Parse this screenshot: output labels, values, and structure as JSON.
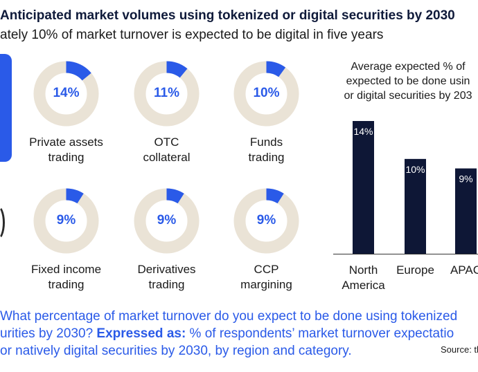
{
  "header": {
    "title": "Anticipated market volumes using tokenized or digital securities by 2030",
    "subtitle": "ately 10% of market turnover is expected to be digital in five years"
  },
  "donuts": [
    {
      "pct_label": "14%",
      "value": 14,
      "label_line1": "Private assets",
      "label_line2": "trading"
    },
    {
      "pct_label": "11%",
      "value": 11,
      "label_line1": "OTC",
      "label_line2": "collateral"
    },
    {
      "pct_label": "10%",
      "value": 10,
      "label_line1": "Funds",
      "label_line2": "trading"
    },
    {
      "pct_label": "9%",
      "value": 9,
      "label_line1": "Fixed income",
      "label_line2": "trading"
    },
    {
      "pct_label": "9%",
      "value": 9,
      "label_line1": "Derivatives",
      "label_line2": "trading"
    },
    {
      "pct_label": "9%",
      "value": 9,
      "label_line1": "CCP",
      "label_line2": "margining"
    }
  ],
  "chart_data": {
    "type": "bar",
    "title_lines": [
      "Average expected % of",
      "expected to be done usin",
      "or digital securities by 203"
    ],
    "categories": [
      "North America",
      "Europe",
      "APAC"
    ],
    "category_lines": [
      [
        "North",
        "America"
      ],
      [
        "Europe"
      ],
      [
        "APAC"
      ]
    ],
    "values": [
      14,
      10,
      9
    ],
    "value_labels": [
      "14%",
      "10%",
      "9%"
    ],
    "ylim": [
      0,
      14
    ],
    "grid": false,
    "colors": {
      "bar": "#0e1736",
      "donut_fill": "#2a5ae8",
      "donut_track": "#eae3d6",
      "accent": "#2a5ae8"
    }
  },
  "footer": {
    "question_part1": "What percentage of market turnover do you expect to be done using tokenized",
    "question_part2a": "urities by 2030? ",
    "question_expressed": "Expressed as:",
    "question_part2b": " % of respondents’ market turnover expectatio",
    "question_part3": "or natively digital securities by 2030, by region and category.",
    "source": "Source: th"
  }
}
